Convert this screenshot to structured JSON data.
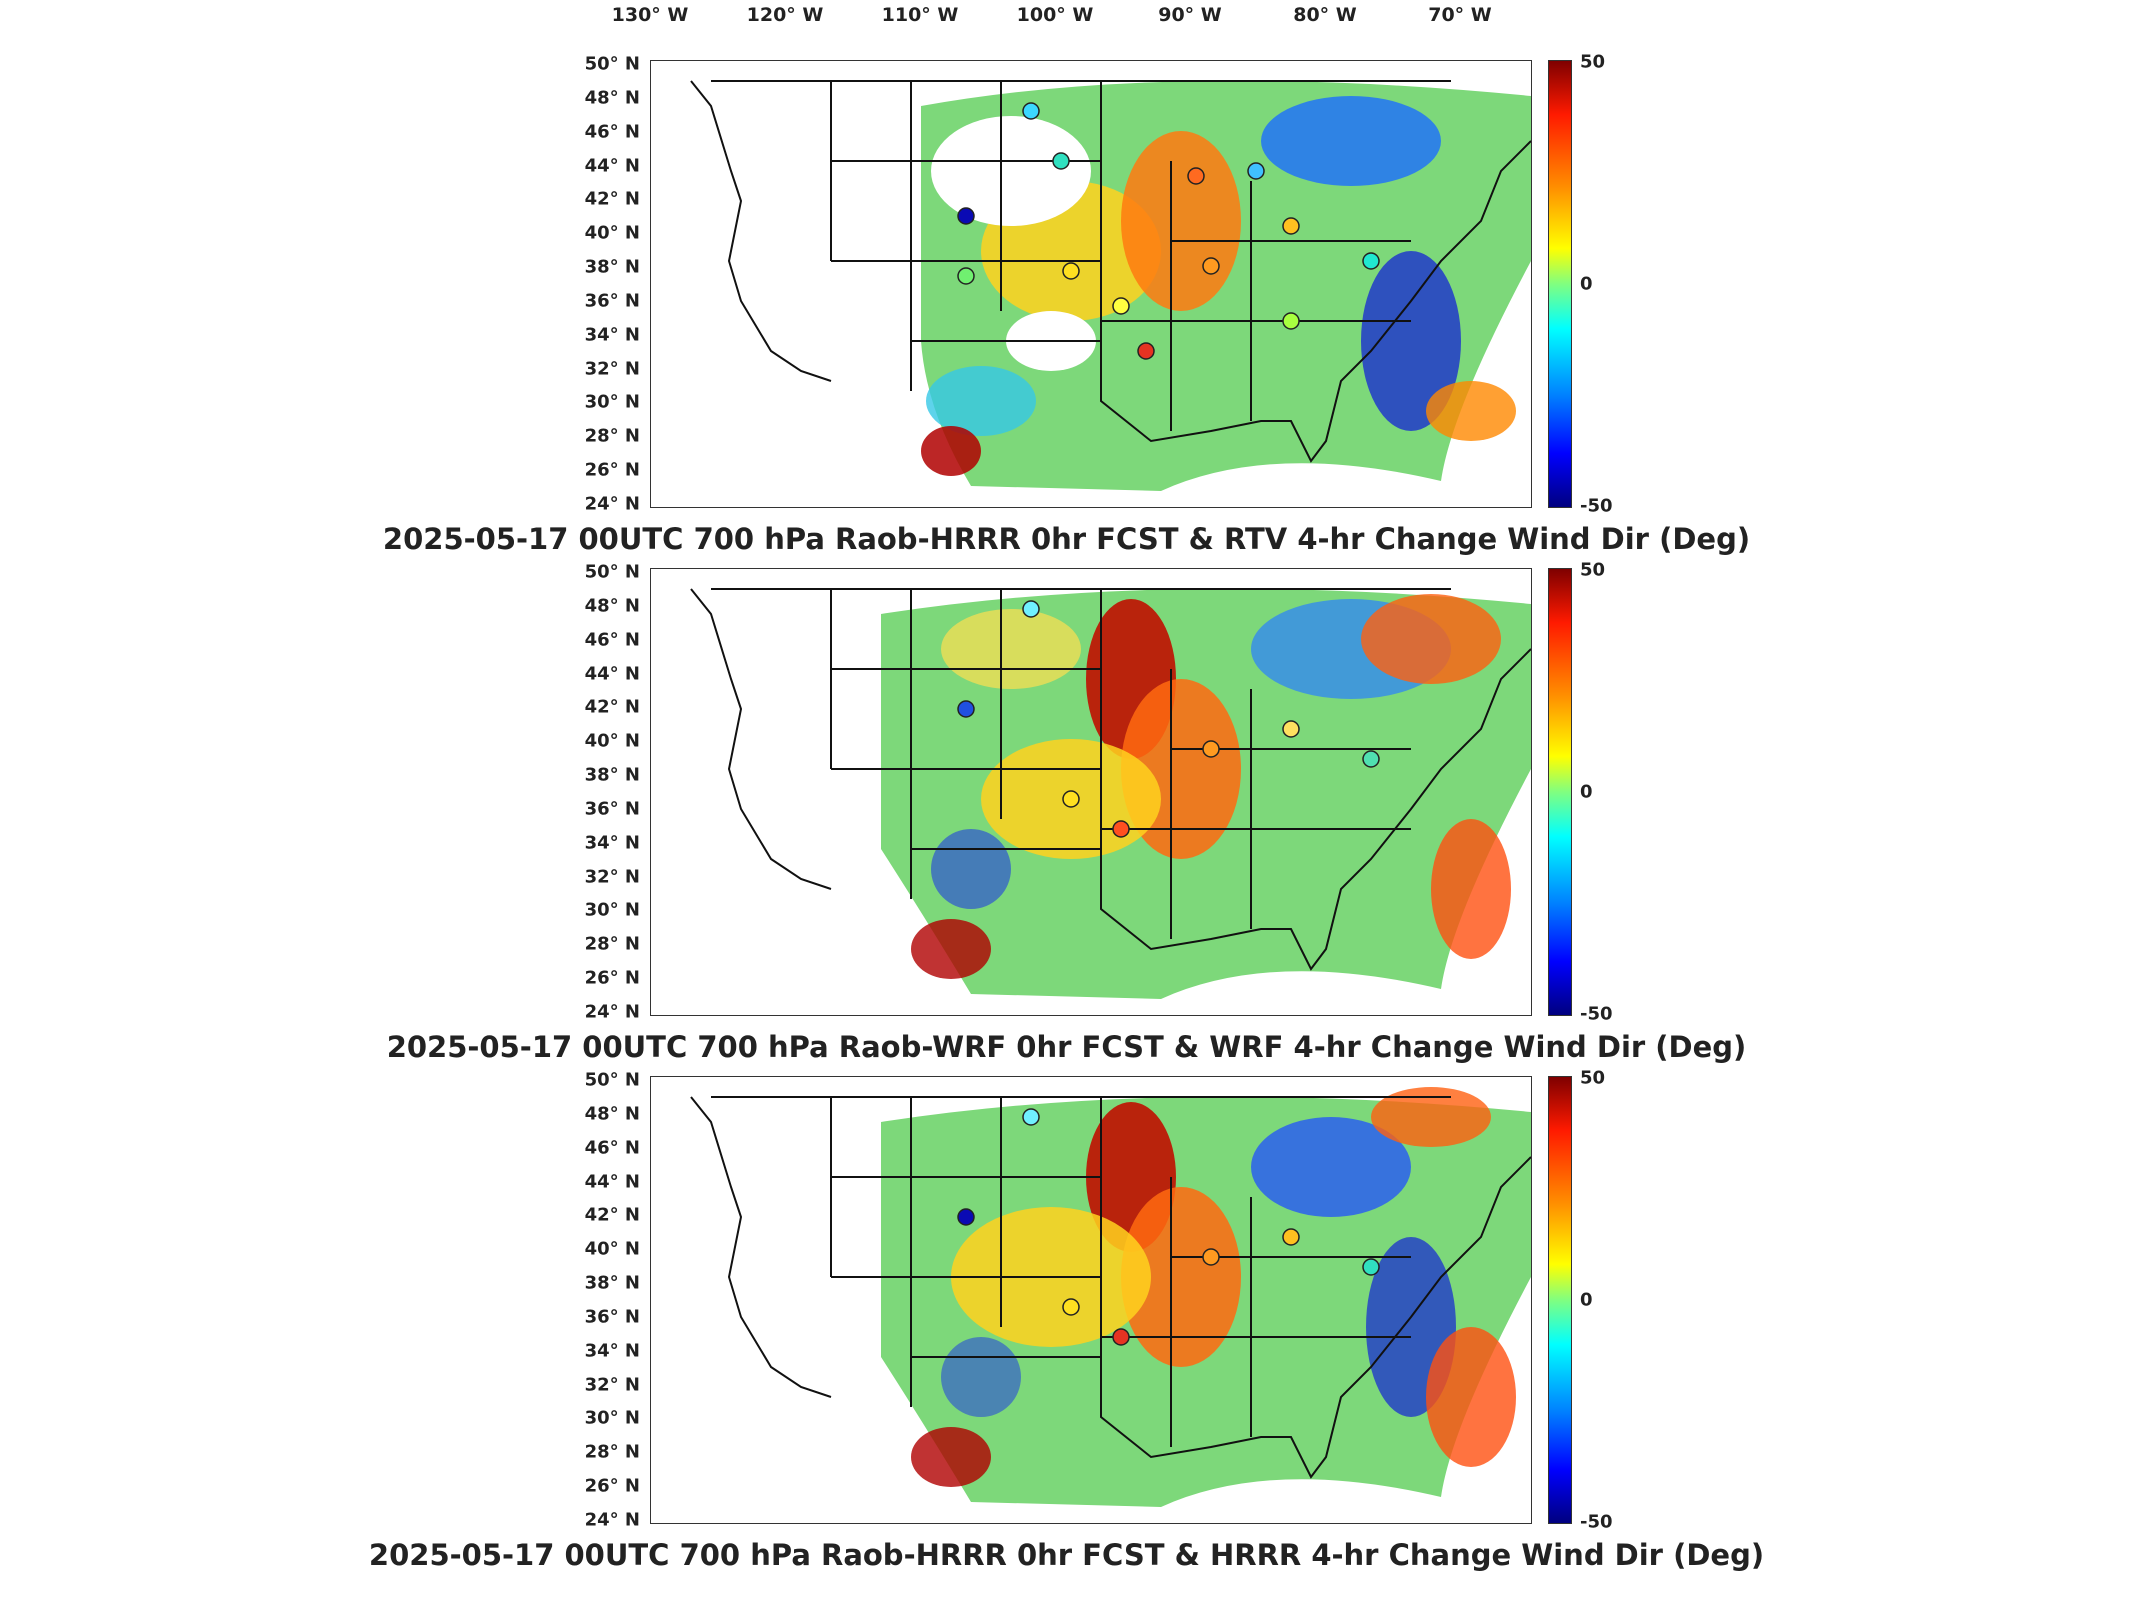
{
  "lon_labels": [
    "130° W",
    "120° W",
    "110° W",
    "100° W",
    "90° W",
    "80° W",
    "70° W"
  ],
  "lat_labels": [
    "50° N",
    "48° N",
    "46° N",
    "44° N",
    "42° N",
    "40° N",
    "38° N",
    "36° N",
    "34° N",
    "32° N",
    "30° N",
    "28° N",
    "26° N",
    "24° N"
  ],
  "colorbar": {
    "max": "50",
    "mid": "0",
    "min": "-50",
    "colors": [
      "#7f0000",
      "#ff1a00",
      "#ff8c00",
      "#ffff00",
      "#80ff80",
      "#00ffff",
      "#0080ff",
      "#0000ff",
      "#00007f"
    ]
  },
  "panels": [
    {
      "title": "2025-05-17 00UTC 700 hPa Raob-HRRR 0hr FCST & RTV 4-hr Change Wind Dir (Deg)"
    },
    {
      "title": "2025-05-17 00UTC 700 hPa Raob-WRF 0hr FCST & WRF 4-hr Change Wind Dir (Deg)"
    },
    {
      "title": "2025-05-17 00UTC 700 hPa Raob-HRRR 0hr FCST & HRRR 4-hr Change Wind Dir (Deg)"
    }
  ]
}
